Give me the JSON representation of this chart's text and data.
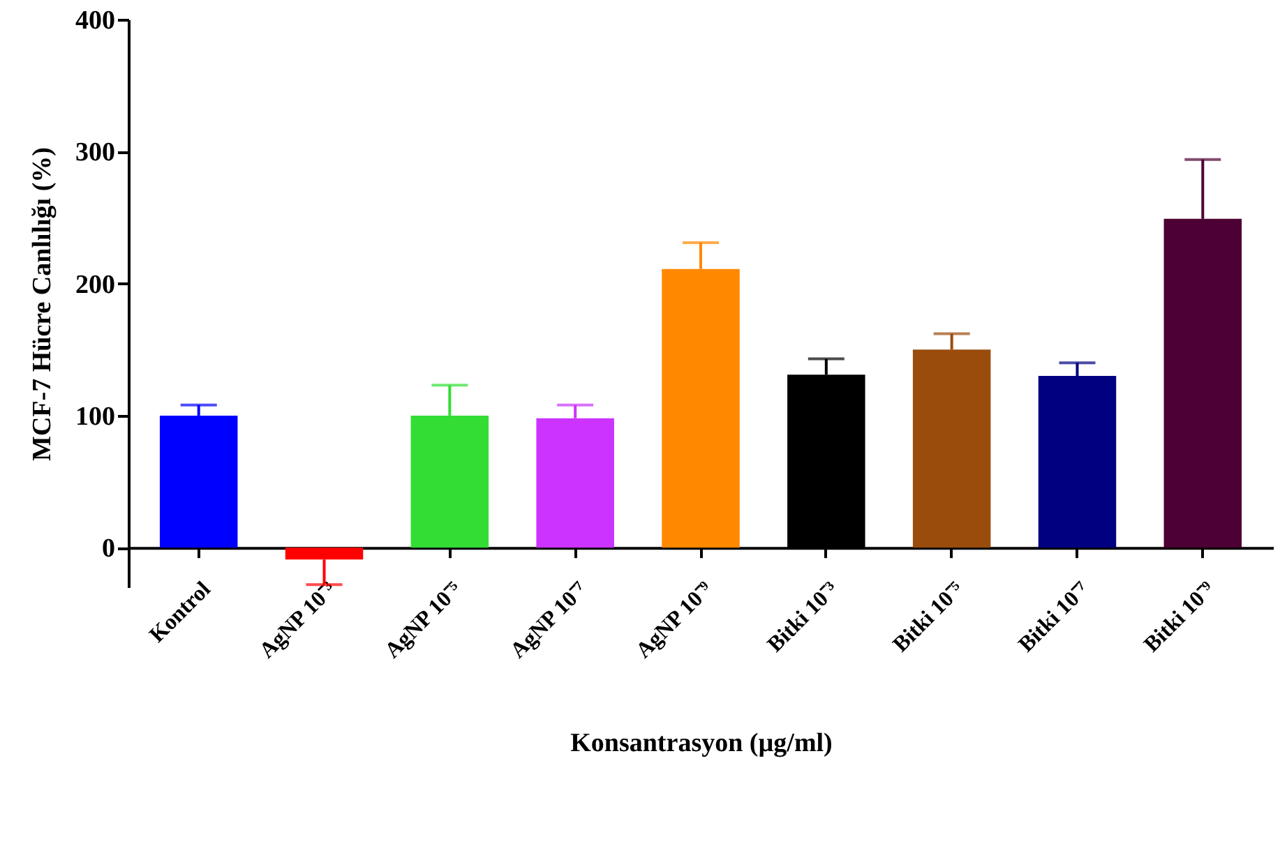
{
  "chart_data": {
    "type": "bar",
    "xlabel": "Konsantrasyon (µg/ml)",
    "ylabel": "MCF-7 Hücre Canlılığı (%)",
    "categories": [
      "Kontrol",
      "AgNP 10⁻³",
      "AgNP 10⁻⁵",
      "AgNP 10⁻⁷",
      "AgNP 10⁻⁹",
      "Bitki 10⁻³",
      "Bitki 10⁻⁵",
      "Bitki 10⁻⁷",
      "Bitki 10⁻⁹"
    ],
    "values": [
      100,
      -9,
      100,
      98,
      211,
      131,
      150,
      130,
      249
    ],
    "errors": [
      [
        100,
        108
      ],
      [
        -28,
        -9
      ],
      [
        100,
        123
      ],
      [
        98,
        108
      ],
      [
        211,
        231
      ],
      [
        131,
        143
      ],
      [
        150,
        162
      ],
      [
        130,
        140
      ],
      [
        249,
        294
      ]
    ],
    "colors": [
      "#0000ff",
      "#ff0000",
      "#33dd33",
      "#cc33ff",
      "#ff8800",
      "#000000",
      "#994c0c",
      "#000080",
      "#4d0033"
    ],
    "ylim": [
      -30,
      400
    ],
    "yticks": [
      0,
      100,
      200,
      300,
      400
    ],
    "grid": false
  }
}
